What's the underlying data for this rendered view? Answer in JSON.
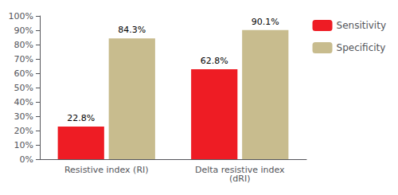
{
  "chart_data": {
    "type": "bar",
    "categories": [
      "Resistive index (RI)",
      "Delta resistive index\n(dRI)"
    ],
    "series": [
      {
        "name": "Sensitivity",
        "color": "#ee1c24",
        "values": [
          0.228,
          0.628
        ],
        "value_labels": [
          "22.8%",
          "62.8%"
        ]
      },
      {
        "name": "Specificity",
        "color": "#c8bc8e",
        "values": [
          0.843,
          0.901
        ],
        "value_labels": [
          "84.3%",
          "90.1%"
        ]
      }
    ],
    "ylim": [
      0,
      1.0
    ],
    "yticks": [
      {
        "value": 0.0,
        "label": "0%"
      },
      {
        "value": 0.1,
        "label": "10%"
      },
      {
        "value": 0.2,
        "label": "20%"
      },
      {
        "value": 0.3,
        "label": "30%"
      },
      {
        "value": 0.4,
        "label": "40%"
      },
      {
        "value": 0.5,
        "label": "50%"
      },
      {
        "value": 0.6,
        "label": "60%"
      },
      {
        "value": 0.7,
        "label": "70%"
      },
      {
        "value": 0.8,
        "label": "80%"
      },
      {
        "value": 0.9,
        "label": "90%"
      },
      {
        "value": 1.0,
        "label": "100%"
      }
    ],
    "grid": false,
    "legend": "right",
    "data_labels": true
  }
}
